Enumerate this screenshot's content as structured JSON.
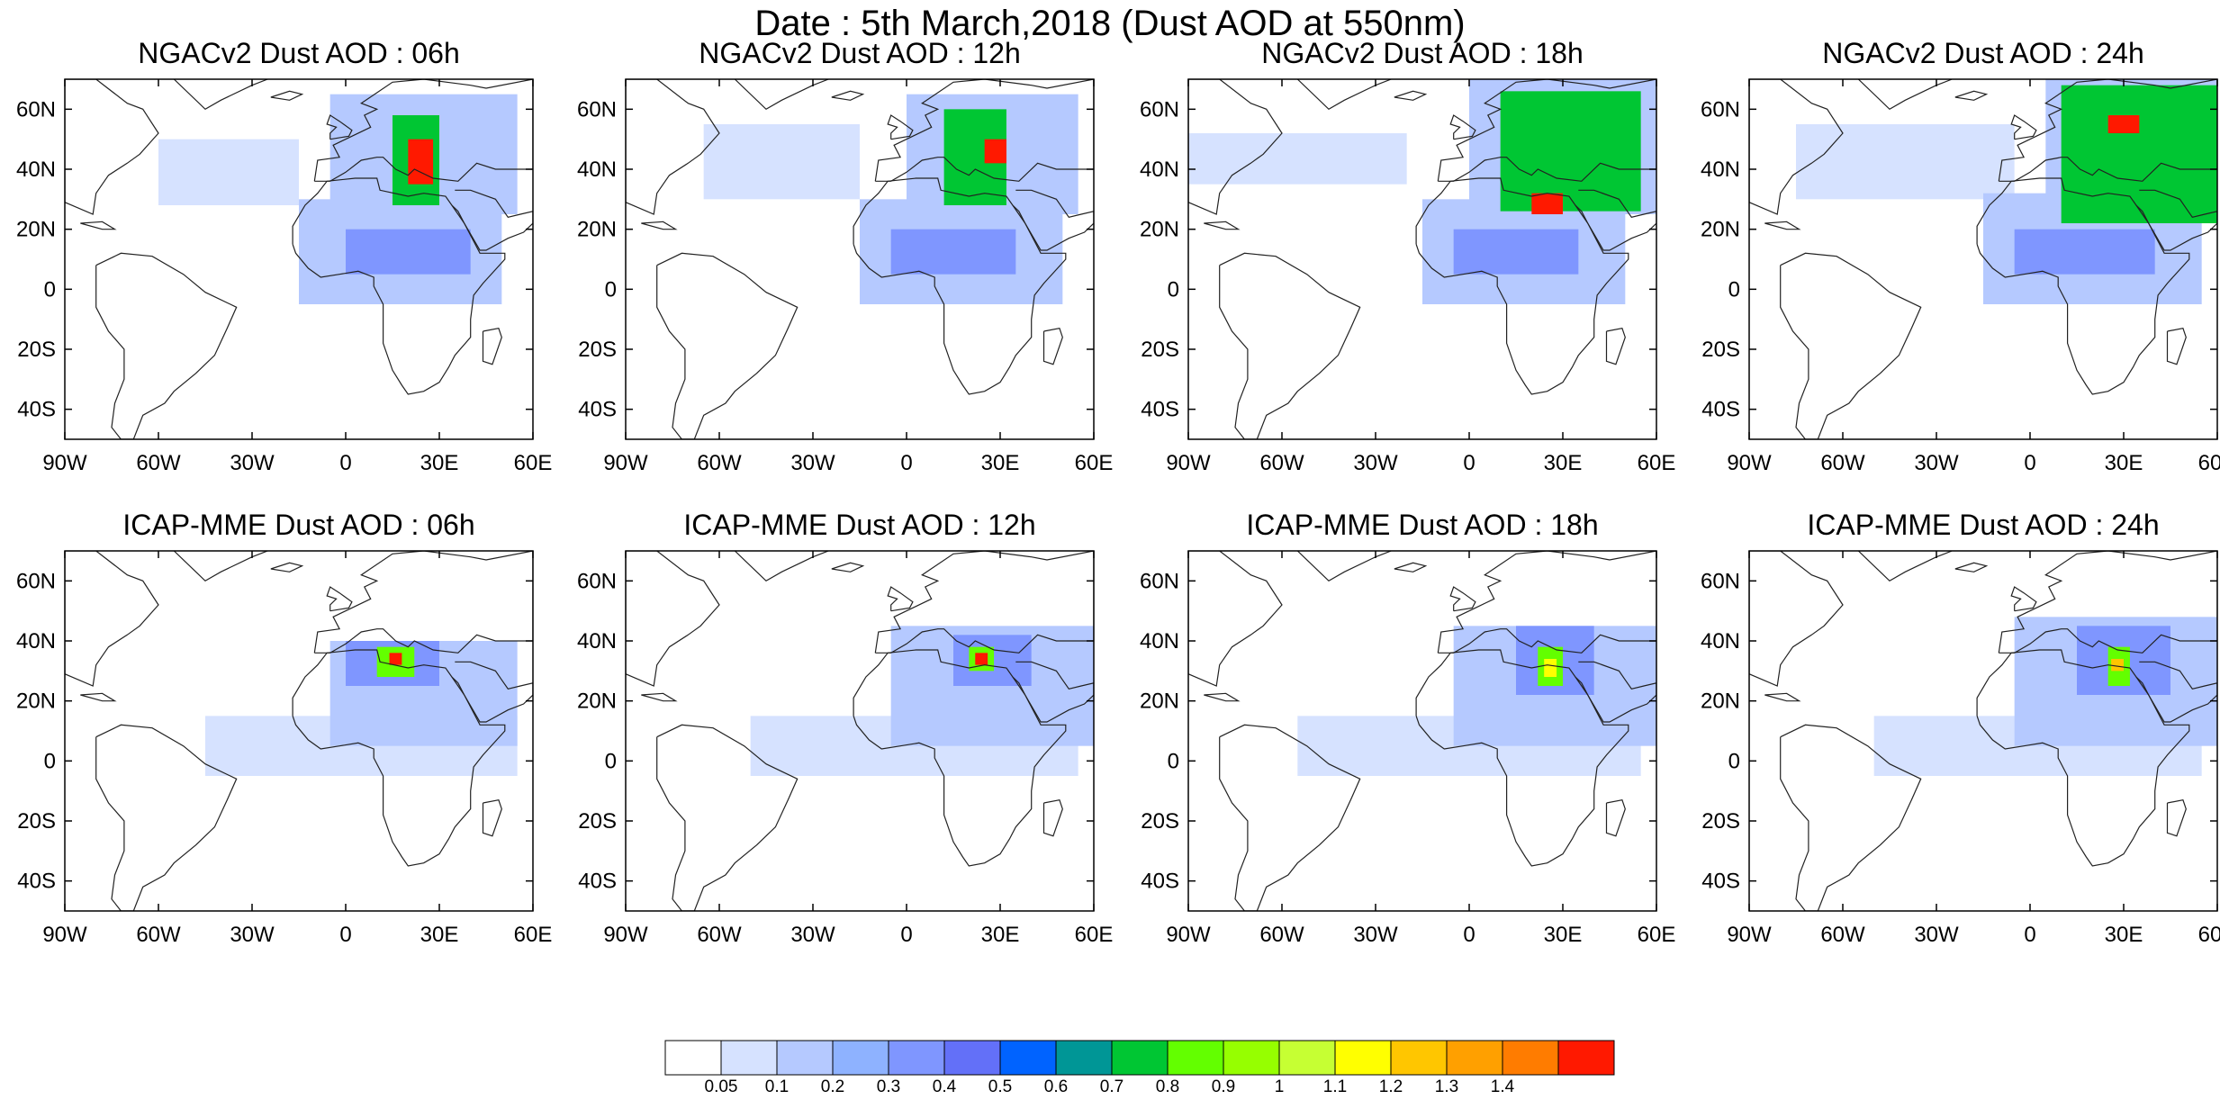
{
  "title": "Date : 5th March,2018 (Dust AOD at 550nm)",
  "axes": {
    "lon_ticks": [
      {
        "value": -90,
        "label": "90W"
      },
      {
        "value": -60,
        "label": "60W"
      },
      {
        "value": -30,
        "label": "30W"
      },
      {
        "value": 0,
        "label": "0"
      },
      {
        "value": 30,
        "label": "30E"
      },
      {
        "value": 60,
        "label": "60E"
      }
    ],
    "lat_ticks": [
      {
        "value": 60,
        "label": "60N"
      },
      {
        "value": 40,
        "label": "40N"
      },
      {
        "value": 20,
        "label": "20N"
      },
      {
        "value": 0,
        "label": "0"
      },
      {
        "value": -20,
        "label": "20S"
      },
      {
        "value": -40,
        "label": "40S"
      }
    ],
    "lon_range": [
      -90,
      60
    ],
    "lat_range": [
      -50,
      70
    ]
  },
  "panels": [
    {
      "title": "NGACv2 Dust AOD : 06h",
      "model": "NGACv2",
      "hour": "06h",
      "dust": [
        {
          "lon": [
            -60,
            -15
          ],
          "lat": [
            28,
            50
          ],
          "level": 0.1
        },
        {
          "lon": [
            -15,
            50
          ],
          "lat": [
            -5,
            30
          ],
          "level": 0.2
        },
        {
          "lon": [
            -5,
            55
          ],
          "lat": [
            25,
            65
          ],
          "level": 0.2
        },
        {
          "lon": [
            0,
            40
          ],
          "lat": [
            5,
            20
          ],
          "level": 0.4
        },
        {
          "lon": [
            15,
            30
          ],
          "lat": [
            28,
            58
          ],
          "level": 0.7
        },
        {
          "lon": [
            20,
            28
          ],
          "lat": [
            35,
            50
          ],
          "level": 1.3
        }
      ]
    },
    {
      "title": "NGACv2 Dust AOD : 12h",
      "model": "NGACv2",
      "hour": "12h",
      "dust": [
        {
          "lon": [
            -65,
            -15
          ],
          "lat": [
            30,
            55
          ],
          "level": 0.1
        },
        {
          "lon": [
            -15,
            50
          ],
          "lat": [
            -5,
            30
          ],
          "level": 0.2
        },
        {
          "lon": [
            0,
            55
          ],
          "lat": [
            25,
            65
          ],
          "level": 0.2
        },
        {
          "lon": [
            -5,
            35
          ],
          "lat": [
            5,
            20
          ],
          "level": 0.4
        },
        {
          "lon": [
            12,
            32
          ],
          "lat": [
            28,
            60
          ],
          "level": 0.7
        },
        {
          "lon": [
            25,
            32
          ],
          "lat": [
            42,
            50
          ],
          "level": 1.3
        }
      ]
    },
    {
      "title": "NGACv2 Dust AOD : 18h",
      "model": "NGACv2",
      "hour": "18h",
      "dust": [
        {
          "lon": [
            -90,
            -20
          ],
          "lat": [
            35,
            52
          ],
          "level": 0.1
        },
        {
          "lon": [
            -15,
            50
          ],
          "lat": [
            -5,
            30
          ],
          "level": 0.2
        },
        {
          "lon": [
            0,
            60
          ],
          "lat": [
            25,
            70
          ],
          "level": 0.2
        },
        {
          "lon": [
            -5,
            35
          ],
          "lat": [
            5,
            20
          ],
          "level": 0.4
        },
        {
          "lon": [
            10,
            55
          ],
          "lat": [
            26,
            66
          ],
          "level": 0.7
        },
        {
          "lon": [
            20,
            30
          ],
          "lat": [
            25,
            32
          ],
          "level": 1.3
        }
      ]
    },
    {
      "title": "NGACv2 Dust AOD : 24h",
      "model": "NGACv2",
      "hour": "24h",
      "dust": [
        {
          "lon": [
            -75,
            -5
          ],
          "lat": [
            30,
            55
          ],
          "level": 0.1
        },
        {
          "lon": [
            -15,
            55
          ],
          "lat": [
            -5,
            32
          ],
          "level": 0.2
        },
        {
          "lon": [
            5,
            60
          ],
          "lat": [
            30,
            70
          ],
          "level": 0.2
        },
        {
          "lon": [
            -5,
            40
          ],
          "lat": [
            5,
            20
          ],
          "level": 0.4
        },
        {
          "lon": [
            10,
            60
          ],
          "lat": [
            22,
            68
          ],
          "level": 0.7
        },
        {
          "lon": [
            25,
            35
          ],
          "lat": [
            52,
            58
          ],
          "level": 1.3
        }
      ]
    },
    {
      "title": "ICAP-MME Dust AOD : 06h",
      "model": "ICAP-MME",
      "hour": "06h",
      "dust": [
        {
          "lon": [
            -45,
            55
          ],
          "lat": [
            -5,
            15
          ],
          "level": 0.1
        },
        {
          "lon": [
            -5,
            55
          ],
          "lat": [
            5,
            40
          ],
          "level": 0.2
        },
        {
          "lon": [
            0,
            30
          ],
          "lat": [
            25,
            40
          ],
          "level": 0.4
        },
        {
          "lon": [
            10,
            22
          ],
          "lat": [
            28,
            38
          ],
          "level": 0.8
        },
        {
          "lon": [
            14,
            18
          ],
          "lat": [
            32,
            36
          ],
          "level": 1.3
        }
      ]
    },
    {
      "title": "ICAP-MME Dust AOD : 12h",
      "model": "ICAP-MME",
      "hour": "12h",
      "dust": [
        {
          "lon": [
            -50,
            55
          ],
          "lat": [
            -5,
            15
          ],
          "level": 0.1
        },
        {
          "lon": [
            -5,
            60
          ],
          "lat": [
            5,
            45
          ],
          "level": 0.2
        },
        {
          "lon": [
            15,
            40
          ],
          "lat": [
            25,
            42
          ],
          "level": 0.4
        },
        {
          "lon": [
            20,
            28
          ],
          "lat": [
            30,
            38
          ],
          "level": 0.8
        },
        {
          "lon": [
            22,
            26
          ],
          "lat": [
            32,
            36
          ],
          "level": 1.3
        }
      ]
    },
    {
      "title": "ICAP-MME Dust AOD : 18h",
      "model": "ICAP-MME",
      "hour": "18h",
      "dust": [
        {
          "lon": [
            -55,
            55
          ],
          "lat": [
            -5,
            15
          ],
          "level": 0.1
        },
        {
          "lon": [
            -5,
            60
          ],
          "lat": [
            5,
            45
          ],
          "level": 0.2
        },
        {
          "lon": [
            15,
            40
          ],
          "lat": [
            22,
            45
          ],
          "level": 0.4
        },
        {
          "lon": [
            22,
            30
          ],
          "lat": [
            25,
            38
          ],
          "level": 0.8
        },
        {
          "lon": [
            24,
            28
          ],
          "lat": [
            28,
            34
          ],
          "level": 1.0
        }
      ]
    },
    {
      "title": "ICAP-MME Dust AOD : 24h",
      "model": "ICAP-MME",
      "hour": "24h",
      "dust": [
        {
          "lon": [
            -50,
            55
          ],
          "lat": [
            -5,
            15
          ],
          "level": 0.1
        },
        {
          "lon": [
            -5,
            60
          ],
          "lat": [
            5,
            48
          ],
          "level": 0.2
        },
        {
          "lon": [
            15,
            45
          ],
          "lat": [
            22,
            45
          ],
          "level": 0.4
        },
        {
          "lon": [
            25,
            32
          ],
          "lat": [
            25,
            38
          ],
          "level": 0.8
        },
        {
          "lon": [
            26,
            30
          ],
          "lat": [
            30,
            34
          ],
          "level": 1.1
        }
      ]
    }
  ],
  "colorbar": {
    "labels": [
      "0.05",
      "0.1",
      "0.2",
      "0.3",
      "0.4",
      "0.5",
      "0.6",
      "0.7",
      "0.8",
      "0.9",
      "1",
      "1.1",
      "1.2",
      "1.3",
      "1.4"
    ],
    "colors": [
      "#ffffff",
      "#d6e2ff",
      "#b5c9ff",
      "#8eb2ff",
      "#7f96ff",
      "#6370f8",
      "#0063ff",
      "#009696",
      "#00c633",
      "#63ff00",
      "#96ff00",
      "#c6ff33",
      "#ffff00",
      "#ffc600",
      "#ffa000",
      "#ff7c00",
      "#ff1900"
    ]
  },
  "level_colors": {
    "0.1": "#d6e2ff",
    "0.2": "#b5c9ff",
    "0.4": "#7f96ff",
    "0.7": "#00c633",
    "0.8": "#63ff00",
    "1.0": "#ffff00",
    "1.1": "#ffc600",
    "1.3": "#ff1900"
  }
}
